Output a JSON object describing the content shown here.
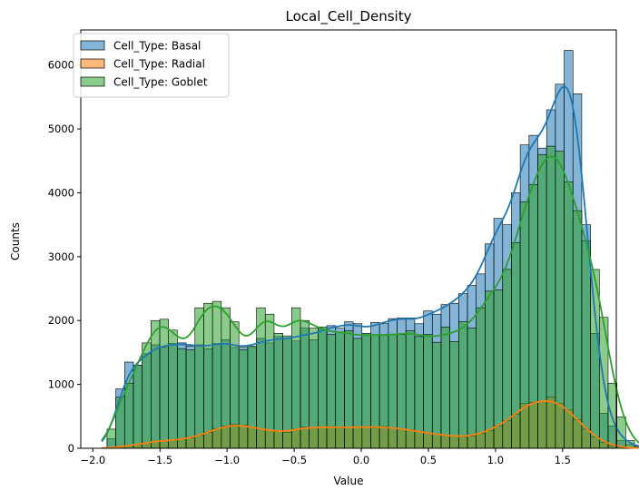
{
  "chart_data": {
    "type": "bar",
    "title": "Local_Cell_Density",
    "xlabel": "Value",
    "ylabel": "Counts",
    "xlim": [
      -2.09,
      1.9
    ],
    "ylim": [
      0,
      6550
    ],
    "xticks": [
      -2.0,
      -1.5,
      -1.0,
      -0.5,
      0.0,
      0.5,
      1.0,
      1.5
    ],
    "xtick_labels": [
      "−2.0",
      "−1.5",
      "−1.0",
      "−0.5",
      "0.0",
      "0.5",
      "1.0",
      "1.5"
    ],
    "yticks": [
      0,
      1000,
      2000,
      3000,
      4000,
      5000,
      6000
    ],
    "ytick_labels": [
      "0",
      "1000",
      "2000",
      "3000",
      "4000",
      "5000",
      "6000"
    ],
    "grid": false,
    "legend_position": "upper-left",
    "bin_start": -1.96,
    "bin_width": 0.0655,
    "series": [
      {
        "name": "Cell_Type: Basal",
        "color": "#1f77b4",
        "fill": "rgba(31,119,180,0.55)",
        "values": [
          0,
          150,
          930,
          1350,
          1300,
          1480,
          1620,
          1580,
          1640,
          1650,
          1600,
          1620,
          1560,
          1640,
          1700,
          1580,
          1580,
          1580,
          1720,
          1650,
          1750,
          1720,
          1680,
          1880,
          1700,
          1870,
          1920,
          1880,
          1980,
          1950,
          1800,
          1970,
          1950,
          2030,
          2040,
          2040,
          1950,
          2150,
          2100,
          2250,
          2270,
          2420,
          2550,
          2730,
          3200,
          3600,
          3500,
          4000,
          4750,
          4900,
          4700,
          5300,
          5700,
          6230,
          5550,
          3500,
          1800,
          550,
          350,
          120,
          60,
          20
        ]
      },
      {
        "name": "Cell_Type: Radial",
        "color": "#ff7f0e",
        "fill": "rgba(255,127,14,0.55)",
        "values": [
          0,
          10,
          20,
          40,
          60,
          90,
          110,
          120,
          130,
          140,
          160,
          200,
          250,
          310,
          350,
          370,
          360,
          330,
          300,
          280,
          260,
          250,
          300,
          330,
          320,
          330,
          340,
          320,
          330,
          330,
          340,
          320,
          340,
          320,
          300,
          290,
          260,
          240,
          220,
          200,
          190,
          180,
          190,
          230,
          280,
          350,
          430,
          530,
          700,
          720,
          730,
          800,
          700,
          600,
          450,
          300,
          180,
          90,
          40,
          20,
          5,
          0
        ]
      },
      {
        "name": "Cell_Type: Goblet",
        "color": "#2ca02c",
        "fill": "rgba(44,160,44,0.55)",
        "values": [
          0,
          300,
          800,
          1020,
          1300,
          1650,
          2000,
          2020,
          1850,
          1560,
          1540,
          2200,
          2270,
          2300,
          2200,
          1980,
          1540,
          1600,
          2200,
          2100,
          1800,
          1760,
          2200,
          2000,
          1880,
          1900,
          1780,
          1820,
          1840,
          1720,
          1780,
          1780,
          1770,
          1780,
          1780,
          1840,
          1750,
          1780,
          1660,
          1900,
          1670,
          1980,
          1880,
          2200,
          2460,
          2480,
          2800,
          3220,
          3860,
          4130,
          4600,
          4730,
          4650,
          4170,
          3720,
          3250,
          2800,
          2050,
          1020,
          490,
          120,
          30
        ]
      }
    ]
  }
}
